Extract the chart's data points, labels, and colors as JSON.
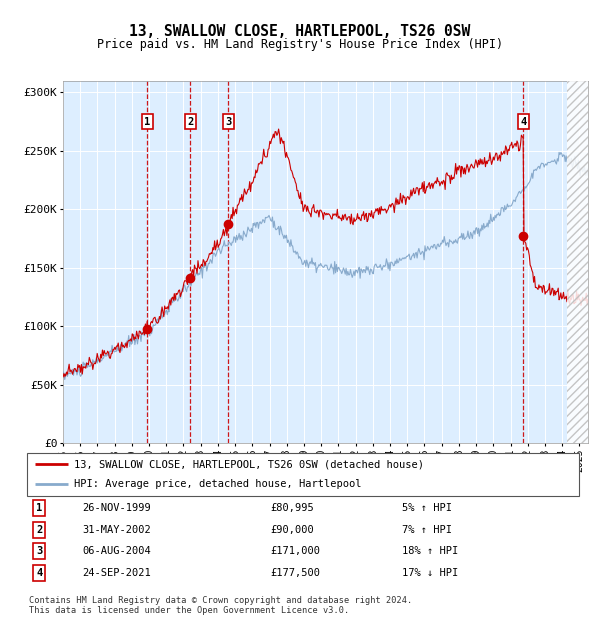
{
  "title": "13, SWALLOW CLOSE, HARTLEPOOL, TS26 0SW",
  "subtitle": "Price paid vs. HM Land Registry's House Price Index (HPI)",
  "legend_line1": "13, SWALLOW CLOSE, HARTLEPOOL, TS26 0SW (detached house)",
  "legend_line2": "HPI: Average price, detached house, Hartlepool",
  "footer1": "Contains HM Land Registry data © Crown copyright and database right 2024.",
  "footer2": "This data is licensed under the Open Government Licence v3.0.",
  "sale_color": "#cc0000",
  "hpi_color": "#88aacc",
  "bg_color": "#ddeeff",
  "plot_bg": "#ffffff",
  "vline_color": "#cc0000",
  "transactions": [
    {
      "num": 1,
      "date": "26-NOV-1999",
      "price": 80995,
      "pct": "5%",
      "dir": "↑",
      "x": 1999.9
    },
    {
      "num": 2,
      "date": "31-MAY-2002",
      "price": 90000,
      "pct": "7%",
      "dir": "↑",
      "x": 2002.4
    },
    {
      "num": 3,
      "date": "06-AUG-2004",
      "price": 171000,
      "pct": "18%",
      "dir": "↑",
      "x": 2004.6
    },
    {
      "num": 4,
      "date": "24-SEP-2021",
      "price": 177500,
      "pct": "17%",
      "dir": "↓",
      "x": 2021.75
    }
  ],
  "ylim": [
    0,
    310000
  ],
  "xlim": [
    1995.0,
    2025.5
  ],
  "yticks": [
    0,
    50000,
    100000,
    150000,
    200000,
    250000,
    300000
  ],
  "ytick_labels": [
    "£0",
    "£50K",
    "£100K",
    "£150K",
    "£200K",
    "£250K",
    "£300K"
  ],
  "xticks": [
    1995,
    1996,
    1997,
    1998,
    1999,
    2000,
    2001,
    2002,
    2003,
    2004,
    2005,
    2006,
    2007,
    2008,
    2009,
    2010,
    2011,
    2012,
    2013,
    2014,
    2015,
    2016,
    2017,
    2018,
    2019,
    2020,
    2021,
    2022,
    2023,
    2024,
    2025
  ]
}
